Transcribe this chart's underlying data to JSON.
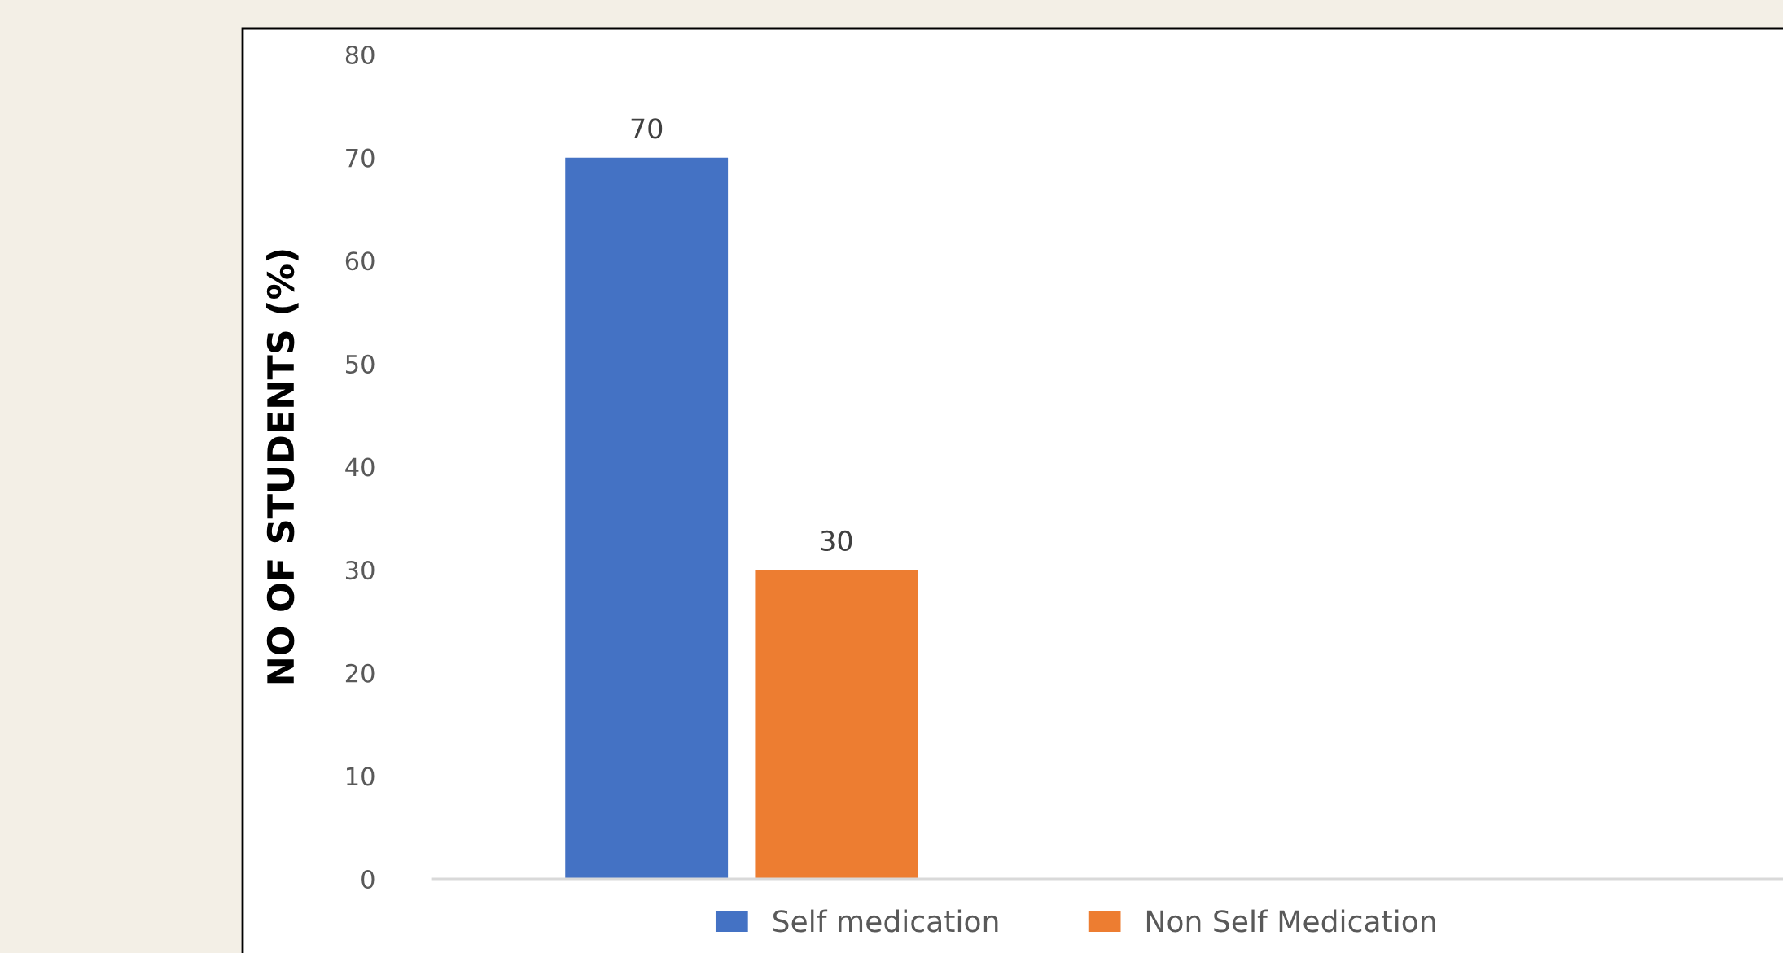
{
  "chart_data": {
    "type": "bar",
    "ylabel": "NO OF STUDENTS (%)",
    "categories": [
      null
    ],
    "series": [
      {
        "name": "Self medication",
        "color": "#4472c4",
        "values": [
          70
        ]
      },
      {
        "name": "Non Self Medication",
        "color": "#ed7d31",
        "values": [
          30
        ]
      }
    ],
    "ylim": [
      0,
      80
    ],
    "yticks": [
      0,
      10,
      20,
      30,
      40,
      50,
      60,
      70,
      80
    ],
    "data_labels": true,
    "legend": "bottom",
    "grid": false
  }
}
